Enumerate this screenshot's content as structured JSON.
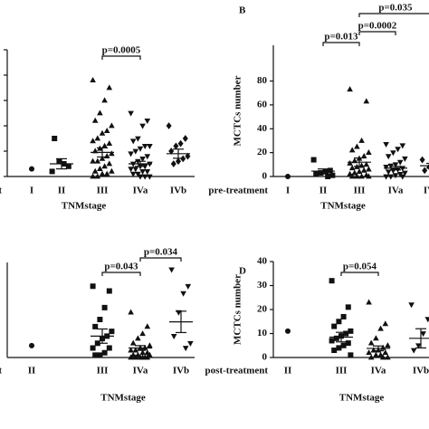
{
  "chart_data": [
    {
      "type": "strip",
      "row_label": "pre-treatment",
      "xlabel": "TNMstage",
      "ylim": [
        0,
        50
      ],
      "yticks": [
        0,
        10,
        20,
        30,
        40,
        50
      ],
      "tick_labels": false,
      "color": "#111111",
      "groups": [
        {
          "label": "I",
          "marker": "circle",
          "points": [
            3
          ],
          "mean": null,
          "sem": null
        },
        {
          "label": "II",
          "marker": "square",
          "points": [
            2,
            4,
            5,
            6,
            15
          ],
          "mean": 5,
          "sem": 2
        },
        {
          "label": "III",
          "marker": "triangle",
          "points": [
            38,
            35,
            30,
            25,
            22,
            20,
            18,
            17,
            15,
            14,
            13,
            12,
            11,
            10,
            9,
            8,
            7,
            6,
            6,
            5,
            4,
            3,
            2,
            2,
            1,
            1,
            0,
            0
          ],
          "mean": 9.5,
          "sem": 1.8
        },
        {
          "label": "IVa",
          "marker": "triangle-down",
          "points": [
            25,
            22,
            20,
            15,
            14,
            12,
            12,
            11,
            10,
            9,
            8,
            7,
            6,
            5,
            5,
            4,
            4,
            3,
            3,
            2,
            2,
            1,
            1,
            0,
            0,
            0
          ],
          "mean": 5,
          "sem": 1
        },
        {
          "label": "IVb",
          "marker": "diamond",
          "points": [
            20,
            15,
            13,
            12,
            10,
            8,
            7,
            6,
            5
          ],
          "mean": 9,
          "sem": 1.8
        }
      ],
      "annotations": [
        {
          "text": "p=0.0005",
          "between": [
            2,
            3
          ]
        }
      ]
    },
    {
      "type": "strip",
      "panel": "B",
      "row_label": "pre-treatment",
      "xlabel": "TNMstage",
      "ylabel": "MCTCs number",
      "ylim": [
        0,
        110
      ],
      "yticks": [
        0,
        20,
        40,
        60,
        80
      ],
      "tick_labels": true,
      "color": "#111111",
      "groups": [
        {
          "label": "I",
          "marker": "circle",
          "points": [
            0
          ],
          "mean": null,
          "sem": null
        },
        {
          "label": "II",
          "marker": "square",
          "points": [
            14,
            5,
            4,
            3,
            2,
            1,
            0
          ],
          "mean": 4.5,
          "sem": 1.8
        },
        {
          "label": "III",
          "marker": "triangle",
          "points": [
            73,
            63,
            30,
            25,
            22,
            20,
            17,
            15,
            13,
            11,
            10,
            9,
            8,
            7,
            6,
            5,
            4,
            3,
            2,
            1,
            0,
            0,
            0,
            0
          ],
          "mean": 12,
          "sem": 3.5
        },
        {
          "label": "IVa",
          "marker": "triangle-down",
          "points": [
            27,
            26,
            23,
            20,
            17,
            15,
            12,
            10,
            9,
            8,
            7,
            6,
            5,
            4,
            3,
            2,
            1,
            0,
            0,
            0
          ],
          "mean": 7,
          "sem": 1.5
        },
        {
          "label": "IVb",
          "marker": "diamond",
          "points": [
            14,
            11,
            9,
            8,
            5,
            3
          ],
          "mean": 9,
          "sem": 2
        }
      ],
      "annotations": [
        {
          "text": "p=0.013",
          "between": [
            1,
            2
          ]
        },
        {
          "text": "p=0.0002",
          "between": [
            2,
            3
          ]
        },
        {
          "text": "p=0.035",
          "between": [
            2,
            4
          ]
        }
      ]
    },
    {
      "type": "strip",
      "row_label": "post-treatment",
      "xlabel": "TNMstage",
      "ylim": [
        0,
        40
      ],
      "color": "#111111",
      "groups": [
        {
          "label": "II",
          "marker": "circle",
          "points": [
            5
          ],
          "mean": null,
          "sem": null
        },
        {
          "label": "III",
          "marker": "square",
          "points": [
            30,
            28,
            21,
            16,
            13,
            11,
            9,
            8,
            6,
            4,
            4,
            2,
            1,
            1
          ],
          "mean": 9,
          "sem": 3
        },
        {
          "label": "IVa",
          "marker": "triangle",
          "points": [
            19,
            13,
            10,
            8,
            6,
            5,
            4,
            4,
            3,
            3,
            2,
            2,
            1,
            1,
            1,
            0,
            0,
            0,
            0,
            0,
            0
          ],
          "mean": 4,
          "sem": 1
        },
        {
          "label": "IVb",
          "marker": "triangle-down",
          "points": [
            37,
            30,
            27,
            19,
            9,
            6,
            4
          ],
          "mean": 15,
          "sem": 4.5
        }
      ],
      "annotations": [
        {
          "text": "p=0.043",
          "between": [
            1,
            2
          ]
        },
        {
          "text": "p=0.034",
          "between": [
            2,
            3
          ]
        }
      ]
    },
    {
      "type": "strip",
      "panel": "D",
      "row_label": "post-treatment",
      "xlabel": "TNMstage",
      "ylabel": "MCTCs number",
      "ylim": [
        0,
        40
      ],
      "yticks": [
        0,
        10,
        20,
        30,
        40
      ],
      "tick_labels": true,
      "color": "#111111",
      "groups": [
        {
          "label": "II",
          "marker": "circle",
          "points": [
            11
          ],
          "mean": null,
          "sem": null
        },
        {
          "label": "III",
          "marker": "square",
          "points": [
            32,
            21,
            17,
            15,
            13,
            11,
            10,
            9,
            8,
            7,
            6,
            5,
            4,
            3,
            1
          ],
          "mean": 8.5,
          "sem": 2
        },
        {
          "label": "IVa",
          "marker": "triangle",
          "points": [
            23,
            14,
            12,
            8,
            6,
            5,
            4,
            3,
            3,
            2,
            2,
            1,
            1,
            0,
            0,
            0
          ],
          "mean": 3.8,
          "sem": 1
        },
        {
          "label": "IVb",
          "marker": "triangle-down",
          "points": [
            22,
            16,
            10,
            5,
            3
          ],
          "mean": 8,
          "sem": 4
        }
      ],
      "annotations": [
        {
          "text": "p=0.054",
          "between": [
            1,
            2
          ]
        }
      ]
    }
  ]
}
